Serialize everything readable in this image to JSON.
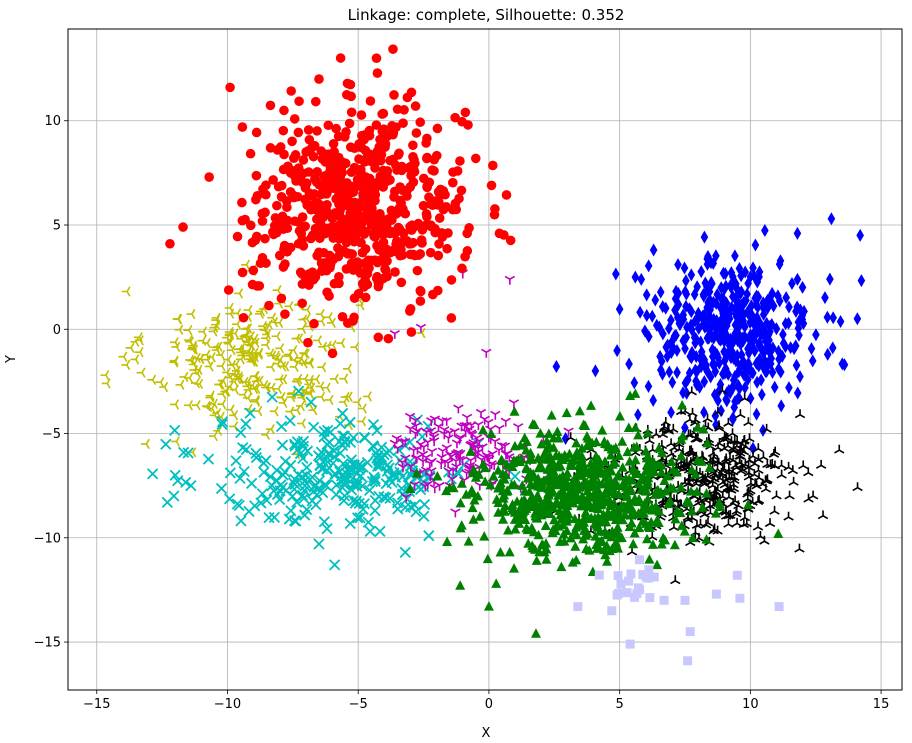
{
  "chart_data": {
    "type": "scatter",
    "title": "Linkage: complete, Silhouette: 0.352",
    "xlabel": "X",
    "ylabel": "Y",
    "xlim": [
      -16.1,
      15.8
    ],
    "ylim": [
      -17.3,
      14.4
    ],
    "xticks": [
      -15,
      -10,
      -5,
      0,
      5,
      10,
      15
    ],
    "xtick_labels": [
      "−15",
      "−10",
      "−5",
      "0",
      "5",
      "10",
      "15"
    ],
    "yticks": [
      -15,
      -10,
      -5,
      0,
      5,
      10
    ],
    "ytick_labels": [
      "−15",
      "−10",
      "−5",
      "0",
      "5",
      "10"
    ],
    "grid": true,
    "clusters": [
      {
        "marker": "circle",
        "color": "#ff0000",
        "center": [
          -5.0,
          5.8
        ],
        "spread": [
          2.0,
          2.3
        ],
        "count": 650,
        "extra_points": [
          [
            -12.2,
            4.1
          ],
          [
            -11.7,
            4.9
          ],
          [
            -10.7,
            7.3
          ],
          [
            -9.9,
            11.6
          ],
          [
            -6.5,
            12.0
          ],
          [
            -4.3,
            13.0
          ],
          [
            -3.0,
            7.8
          ],
          [
            -0.8,
            9.8
          ],
          [
            -0.9,
            10.4
          ],
          [
            0.1,
            6.9
          ],
          [
            0.4,
            4.6
          ],
          [
            -5.6,
            0.6
          ],
          [
            -5.4,
            0.3
          ]
        ]
      },
      {
        "marker": "diamond",
        "color": "#0000ff",
        "center": [
          9.2,
          -0.2
        ],
        "spread": [
          1.6,
          1.8
        ],
        "count": 450,
        "extra_points": [
          [
            13.1,
            5.3
          ],
          [
            14.2,
            4.5
          ],
          [
            11.8,
            4.6
          ],
          [
            6.3,
            3.8
          ],
          [
            5.6,
            2.5
          ],
          [
            13.6,
            -1.7
          ],
          [
            5.7,
            -4.1
          ]
        ]
      },
      {
        "marker": "tri_left",
        "color": "#bfbf00",
        "center": [
          -9.0,
          -1.5
        ],
        "spread": [
          2.0,
          1.7
        ],
        "count": 280,
        "extra_points": [
          [
            -14.6,
            -2.6
          ],
          [
            -13.5,
            -0.6
          ],
          [
            -13.1,
            -5.5
          ],
          [
            -7.2,
            1.2
          ],
          [
            -4.8,
            -3.8
          ],
          [
            -5.0,
            -3.5
          ]
        ]
      },
      {
        "marker": "x",
        "color": "#00bfbf",
        "center": [
          -5.6,
          -6.9
        ],
        "spread": [
          2.5,
          1.3
        ],
        "count": 280,
        "extra_points": [
          [
            -12.3,
            -8.3
          ],
          [
            -12.0,
            -7.0
          ],
          [
            -11.4,
            -7.5
          ],
          [
            -6.5,
            -10.3
          ],
          [
            -5.9,
            -11.3
          ],
          [
            -3.2,
            -10.7
          ],
          [
            -2.3,
            -9.9
          ],
          [
            -8.5,
            -8.2
          ]
        ]
      },
      {
        "marker": "tri_down",
        "color": "#bf00bf",
        "center": [
          -1.0,
          -5.8
        ],
        "spread": [
          1.4,
          0.9
        ],
        "count": 160,
        "extra_points": [
          [
            -3.6,
            -0.2
          ],
          [
            -2.6,
            0.1
          ],
          [
            -1.0,
            2.7
          ],
          [
            0.8,
            2.4
          ],
          [
            -0.1,
            -1.1
          ]
        ]
      },
      {
        "marker": "triangle",
        "color": "#008000",
        "center": [
          3.6,
          -7.8
        ],
        "spread": [
          2.0,
          1.5
        ],
        "count": 700,
        "extra_points": [
          [
            -1.6,
            -10.2
          ],
          [
            -1.1,
            -12.3
          ],
          [
            0.0,
            -13.3
          ],
          [
            1.8,
            -14.6
          ],
          [
            5.4,
            -3.2
          ],
          [
            5.6,
            -3.1
          ]
        ]
      },
      {
        "marker": "tri_up",
        "color": "#000000",
        "center": [
          8.0,
          -7.2
        ],
        "spread": [
          1.8,
          1.5
        ],
        "count": 400,
        "extra_points": [
          [
            11.9,
            -4.1
          ],
          [
            14.1,
            -7.6
          ],
          [
            13.4,
            -5.8
          ],
          [
            12.4,
            -8.0
          ],
          [
            11.0,
            -8.0
          ],
          [
            11.5,
            -8.0
          ],
          [
            9.9,
            -8.6
          ],
          [
            10.9,
            -6.0
          ]
        ]
      },
      {
        "marker": "square",
        "color": "#c8c8ff",
        "center": [
          5.6,
          -12.1
        ],
        "spread": [
          0.6,
          0.6
        ],
        "count": 20,
        "extra_points": [
          [
            3.4,
            -13.3
          ],
          [
            4.7,
            -13.5
          ],
          [
            5.4,
            -15.1
          ],
          [
            7.5,
            -13.0
          ],
          [
            7.7,
            -14.5
          ],
          [
            7.6,
            -15.9
          ],
          [
            8.7,
            -12.7
          ],
          [
            9.5,
            -11.8
          ],
          [
            9.6,
            -12.9
          ],
          [
            11.1,
            -13.3
          ],
          [
            6.7,
            -13.0
          ]
        ]
      }
    ]
  }
}
